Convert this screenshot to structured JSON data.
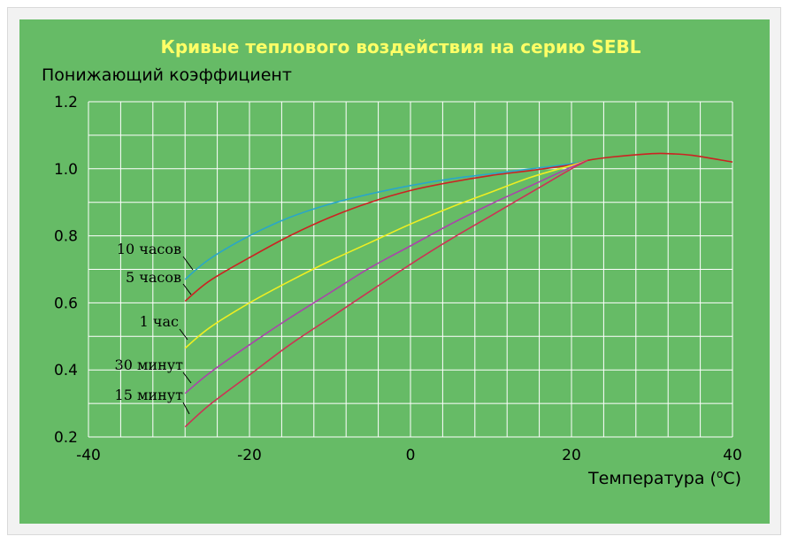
{
  "chart_data": {
    "type": "line",
    "title": "Кривые теплового воздействия на серию SEBL",
    "ylabel": "Понижающий коэффициент",
    "xlabel_prefix": "Температура (",
    "xlabel_sup": "o",
    "xlabel_suffix": "C)",
    "xlim": [
      -40,
      40
    ],
    "ylim": [
      0.2,
      1.2
    ],
    "xticks": [
      -40,
      -20,
      0,
      20,
      40
    ],
    "yticks": [
      1.2,
      1.0,
      0.8,
      0.6,
      0.4,
      0.2
    ],
    "grid": true,
    "series": [
      {
        "name": "10 часов",
        "color": "#2aa6c8",
        "x": [
          -28,
          -25,
          -20,
          -15,
          -10,
          -5,
          0,
          5,
          10,
          15,
          20,
          22
        ],
        "y": [
          0.67,
          0.73,
          0.8,
          0.855,
          0.895,
          0.925,
          0.95,
          0.97,
          0.985,
          1.0,
          1.015,
          1.025
        ]
      },
      {
        "name": "5 часов",
        "color": "#cc2222",
        "x": [
          -28,
          -25,
          -20,
          -15,
          -10,
          -5,
          0,
          5,
          10,
          15,
          20,
          22,
          25,
          30,
          32,
          35,
          40
        ],
        "y": [
          0.605,
          0.665,
          0.735,
          0.8,
          0.855,
          0.9,
          0.935,
          0.96,
          0.98,
          0.995,
          1.012,
          1.025,
          1.035,
          1.045,
          1.045,
          1.04,
          1.02
        ]
      },
      {
        "name": "1 час",
        "color": "#eeee22",
        "x": [
          -28,
          -25,
          -20,
          -15,
          -10,
          -5,
          0,
          5,
          10,
          15,
          20,
          22
        ],
        "y": [
          0.465,
          0.525,
          0.6,
          0.665,
          0.725,
          0.78,
          0.835,
          0.885,
          0.93,
          0.975,
          1.01,
          1.025
        ]
      },
      {
        "name": "30 минут",
        "color": "#aa44aa",
        "x": [
          -28,
          -25,
          -20,
          -15,
          -10,
          -5,
          0,
          5,
          10,
          15,
          20,
          22
        ],
        "y": [
          0.33,
          0.39,
          0.475,
          0.555,
          0.63,
          0.705,
          0.77,
          0.835,
          0.895,
          0.95,
          1.005,
          1.025
        ]
      },
      {
        "name": "15 минут",
        "color": "#cc3355",
        "x": [
          -28,
          -25,
          -20,
          -15,
          -10,
          -5,
          0,
          5,
          10,
          15,
          20,
          22
        ],
        "y": [
          0.23,
          0.295,
          0.385,
          0.475,
          0.555,
          0.635,
          0.715,
          0.79,
          0.86,
          0.93,
          1.0,
          1.025
        ]
      }
    ]
  },
  "colors": {
    "background": "#66bb66",
    "grid": "#ffffff",
    "title": "#ffff66"
  }
}
